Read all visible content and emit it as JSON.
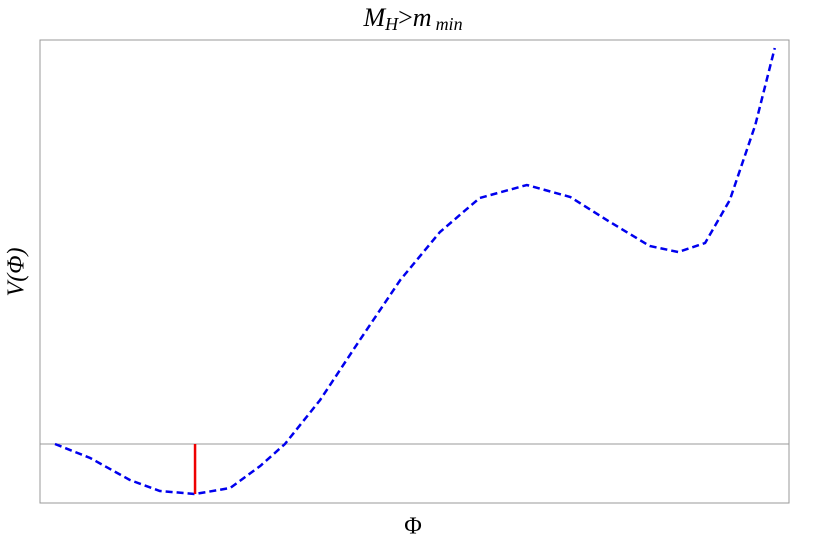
{
  "chart_data": {
    "type": "line",
    "title": [
      "M",
      "H",
      ">",
      "m",
      "min"
    ],
    "xlabel": "Φ",
    "ylabel": "V(Φ)",
    "x": [
      0.2,
      0.67,
      1.2,
      1.6,
      2.07,
      2.54,
      2.94,
      3.27,
      3.74,
      4.27,
      4.81,
      5.34,
      5.87,
      6.5,
      7.08,
      7.61,
      8.14,
      8.52,
      8.88,
      9.21,
      9.55,
      9.81
    ],
    "series": [
      {
        "color": "#0000ee",
        "dashed": true,
        "values": [
          0,
          -0.14,
          -0.36,
          -0.47,
          -0.5,
          -0.44,
          -0.22,
          0,
          0.44,
          1.04,
          1.64,
          2.12,
          2.46,
          2.59,
          2.47,
          2.22,
          1.98,
          1.92,
          2.01,
          2.44,
          3.19,
          3.96
        ]
      }
    ],
    "hline": 0,
    "vline": {
      "x": 2.07,
      "y": [
        0,
        -0.5
      ],
      "color": "#ee0000"
    },
    "xlim": [
      0,
      10
    ],
    "ylim": [
      -0.59,
      4.04
    ]
  }
}
